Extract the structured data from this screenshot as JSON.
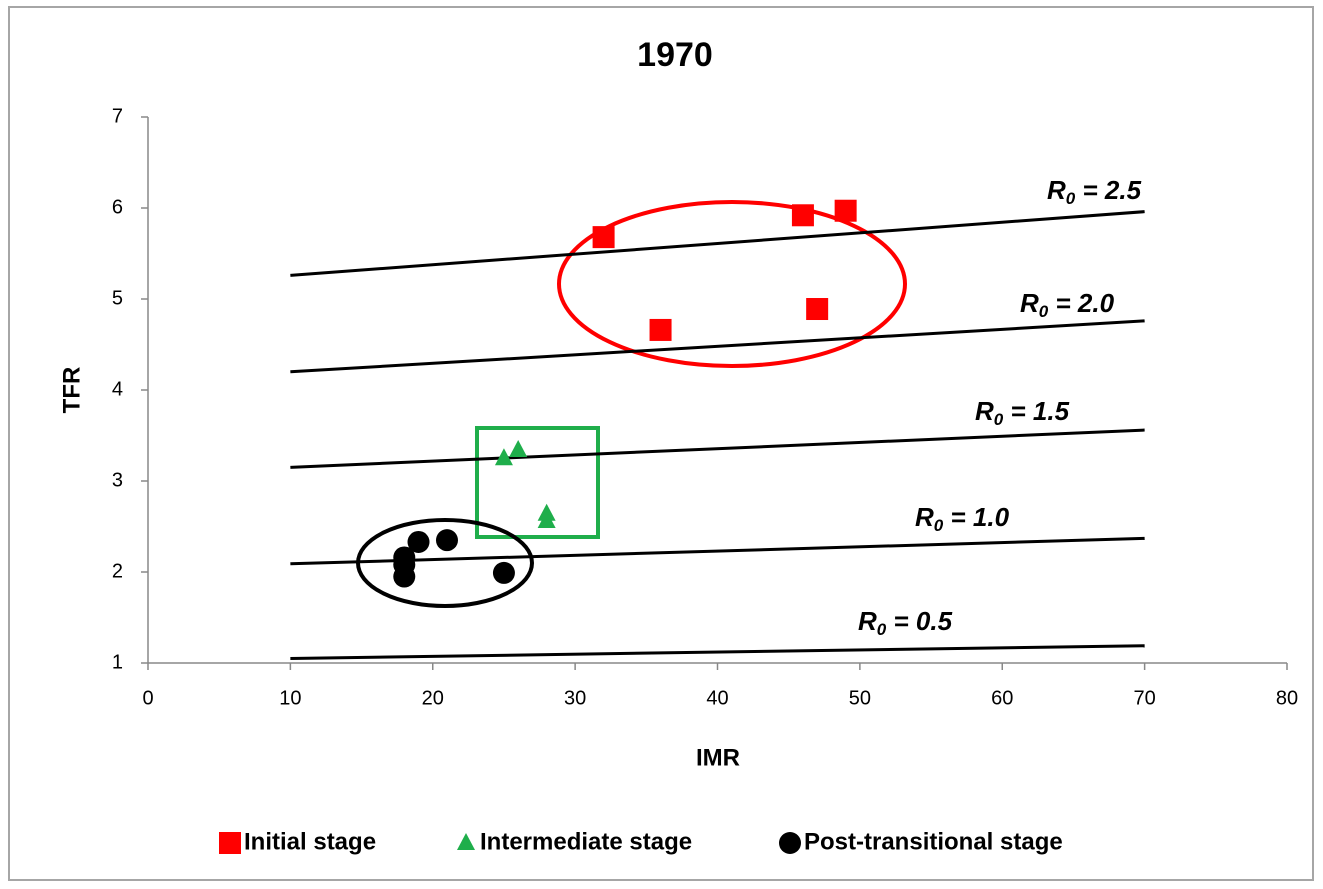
{
  "chart_data": {
    "type": "scatter",
    "title": "1970",
    "x_label": "IMR",
    "y_label": "TFR",
    "xlim": [
      0,
      80
    ],
    "xticks": [
      0,
      10,
      20,
      30,
      40,
      50,
      60,
      70,
      80
    ],
    "ylim": [
      1,
      7
    ],
    "yticks": [
      1,
      2,
      3,
      4,
      5,
      6,
      7
    ],
    "grid": false,
    "series": [
      {
        "name": "Initial stage",
        "color": "#ff0000",
        "marker": "square",
        "x": [
          32,
          36,
          46,
          49,
          47
        ],
        "values": [
          5.68,
          4.66,
          5.92,
          5.97,
          4.89
        ]
      },
      {
        "name": "Intermediate stage",
        "color": "#1fae4b",
        "marker": "triangle",
        "x": [
          25,
          26,
          28,
          28
        ],
        "values": [
          3.25,
          3.34,
          2.64,
          2.56
        ]
      },
      {
        "name": "Post-transitional stage",
        "color": "#000000",
        "marker": "circle",
        "x": [
          18,
          18,
          18,
          19,
          21,
          25
        ],
        "values": [
          2.16,
          2.08,
          1.95,
          2.33,
          2.35,
          1.99
        ]
      }
    ],
    "lines": [
      {
        "symbol": "R",
        "subscript": "0",
        "text": " = 2.5",
        "color": "#000000",
        "x": [
          10,
          70
        ],
        "values": [
          5.26,
          5.96
        ]
      },
      {
        "symbol": "R",
        "subscript": "0",
        "text": " = 2.0",
        "color": "#000000",
        "x": [
          10,
          70
        ],
        "values": [
          4.2,
          4.76
        ]
      },
      {
        "symbol": "R",
        "subscript": "0",
        "text": " = 1.5",
        "color": "#000000",
        "x": [
          10,
          70
        ],
        "values": [
          3.15,
          3.56
        ]
      },
      {
        "symbol": "R",
        "subscript": "0",
        "text": " = 1.0",
        "color": "#000000",
        "x": [
          10,
          70
        ],
        "values": [
          2.09,
          2.37
        ]
      },
      {
        "symbol": "R",
        "subscript": "0",
        "text": " = 0.5",
        "color": "#000000",
        "x": [
          10,
          70
        ],
        "values": [
          1.05,
          1.19
        ]
      }
    ]
  }
}
